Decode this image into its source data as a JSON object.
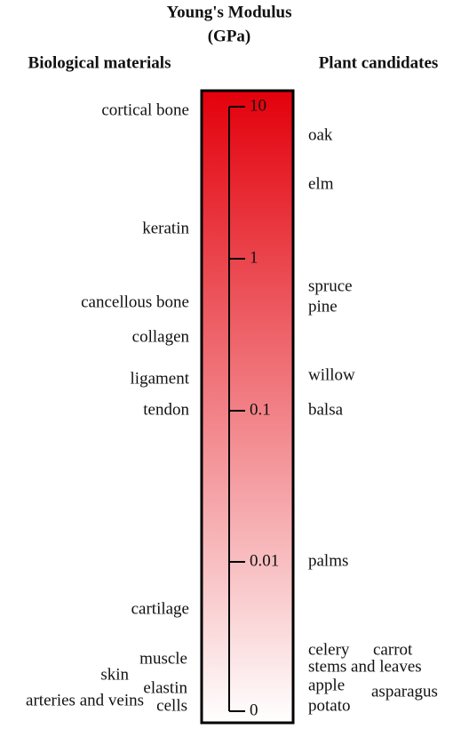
{
  "title": "Young's Modulus",
  "unit": "(GPa)",
  "left_header": "Biological materials",
  "right_header": "Plant candidates",
  "scale_ticks": [
    "10",
    "1",
    "0.1",
    "0.01",
    "0"
  ],
  "biological": [
    "cortical bone",
    "keratin",
    "cancellous bone",
    "collagen",
    "ligament",
    "tendon",
    "cartilage",
    "muscle",
    "skin",
    "elastin",
    "arteries and veins",
    "cells"
  ],
  "plants": [
    "oak",
    "elm",
    "spruce",
    "pine",
    "willow",
    "balsa",
    "palms",
    "celery",
    "carrot",
    "stems and leaves",
    "apple",
    "asparagus",
    "potato"
  ]
}
